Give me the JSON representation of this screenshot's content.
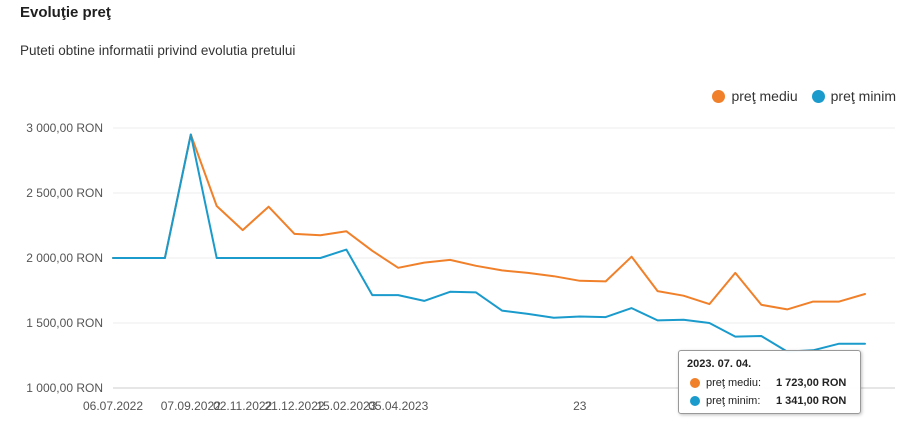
{
  "header": {
    "title": "Evoluţie preţ",
    "subtitle": "Puteti obtine informatii privind evolutia pretului"
  },
  "legend": [
    {
      "label": "preţ mediu",
      "color": "#f0802a"
    },
    {
      "label": "preţ minim",
      "color": "#1a9bcc"
    }
  ],
  "tooltip": {
    "date": "2023. 07. 04.",
    "rows": [
      {
        "label": "preţ mediu:",
        "value": "1 723,00 RON",
        "color": "#f0802a"
      },
      {
        "label": "preţ minim:",
        "value": "1 341,00 RON",
        "color": "#1a9bcc"
      }
    ]
  },
  "chart_data": {
    "type": "line",
    "ylim": [
      1000,
      3000
    ],
    "yticks": [
      1000,
      1500,
      2000,
      2500,
      3000
    ],
    "ytick_labels": [
      "1 000,00 RON",
      "1 500,00 RON",
      "2 000,00 RON",
      "2 500,00 RON",
      "3 000,00 RON"
    ],
    "xtick_labels": [
      "06.07.2022",
      "07.09.2022",
      "02.11.2022",
      "21.12.2022",
      "15.02.2023",
      "05.04.2023",
      "23"
    ],
    "x_count": 30,
    "xtick_index": [
      0,
      3,
      5,
      7,
      9,
      11,
      18
    ],
    "grid": true,
    "legend_position": "top-right",
    "series": [
      {
        "name": "preţ mediu",
        "color": "#f0802a",
        "values": [
          2000,
          2000,
          2000,
          2950,
          2400,
          2215,
          2395,
          2185,
          2175,
          2205,
          2055,
          1925,
          1965,
          1985,
          1940,
          1905,
          1885,
          1860,
          1825,
          1820,
          2010,
          1745,
          1710,
          1645,
          1885,
          1640,
          1605,
          1665,
          1665,
          1723
        ]
      },
      {
        "name": "preţ minim",
        "color": "#1a9bcc",
        "values": [
          2000,
          2000,
          2000,
          2950,
          2000,
          2000,
          2000,
          2000,
          2000,
          2065,
          1715,
          1715,
          1670,
          1740,
          1735,
          1595,
          1570,
          1540,
          1550,
          1545,
          1615,
          1520,
          1525,
          1500,
          1395,
          1400,
          1280,
          1290,
          1341,
          1341
        ]
      }
    ]
  }
}
